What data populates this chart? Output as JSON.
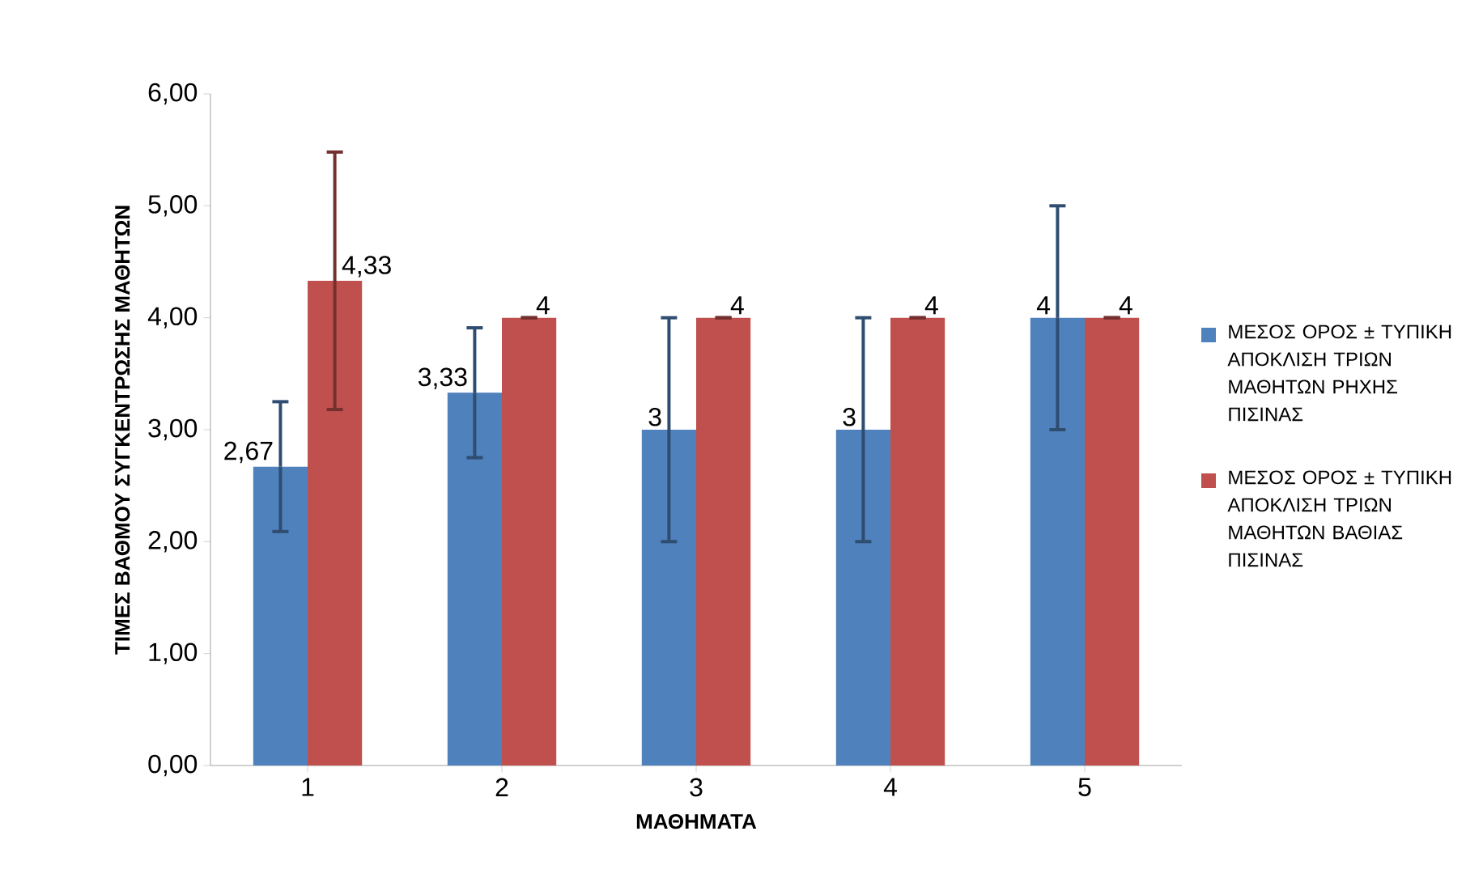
{
  "chart_data": {
    "type": "bar",
    "xlabel": "ΜΑΘΗΜΑΤΑ",
    "ylabel": "ΤΙΜΕΣ ΒΑΘΜΟΥ ΣΥΓΚΕΝΤΡΩΣΗΣ ΜΑΘΗΤΩΝ",
    "categories": [
      "1",
      "2",
      "3",
      "4",
      "5"
    ],
    "series": [
      {
        "name": "ΜΕΣΟΣ ΟΡΟΣ ± ΤΥΠΙΚΗ ΑΠΟΚΛΙΣΗ ΤΡΙΩΝ ΜΑΘΗΤΩΝ ΡΗΧΗΣ ΠΙΣΙΝΑΣ",
        "color": "#4f81bd",
        "values": [
          2.67,
          3.33,
          3,
          3,
          4
        ],
        "errors": [
          0.58,
          0.58,
          1,
          1,
          1
        ],
        "value_labels": [
          "2,67",
          "3,33",
          "3",
          "3",
          "4"
        ]
      },
      {
        "name": "ΜΕΣΟΣ ΟΡΟΣ ± ΤΥΠΙΚΗ ΑΠΟΚΛΙΣΗ ΤΡΙΩΝ ΜΑΘΗΤΩΝ ΒΑΘΙΑΣ ΠΙΣΙΝΑΣ",
        "color": "#c0504d",
        "values": [
          4.33,
          4,
          4,
          4,
          4
        ],
        "errors": [
          1.15,
          0,
          0,
          0,
          0
        ],
        "value_labels": [
          "4,33",
          "4",
          "4",
          "4",
          "4"
        ]
      }
    ],
    "ylim": [
      0,
      6
    ],
    "yticks": [
      {
        "value": 0,
        "label": "0,00"
      },
      {
        "value": 1,
        "label": "1,00"
      },
      {
        "value": 2,
        "label": "2,00"
      },
      {
        "value": 3,
        "label": "3,00"
      },
      {
        "value": 4,
        "label": "4,00"
      },
      {
        "value": 5,
        "label": "5,00"
      },
      {
        "value": 6,
        "label": "6,00"
      }
    ],
    "legend": "right"
  }
}
